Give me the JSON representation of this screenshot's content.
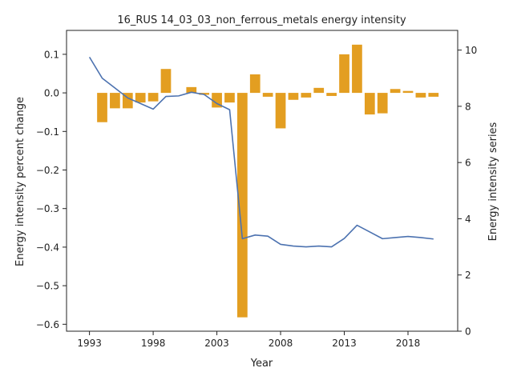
{
  "chart_data": {
    "type": "bar+line",
    "title": "16_RUS 14_03_03_non_ferrous_metals energy intensity",
    "xlabel": "Year",
    "ylabel_left": "Energy intensity percent change",
    "ylabel_right": "Energy intensity series",
    "grid": false,
    "colors": {
      "bars": "#E39E21",
      "line": "#4C72B0",
      "axes": "#222222"
    },
    "x_ticks": [
      1993,
      1998,
      2003,
      2008,
      2013,
      2018
    ],
    "x_tick_labels": [
      "1993",
      "1998",
      "2003",
      "2008",
      "2013",
      "2018"
    ],
    "y_left_ticks": [
      0.1,
      0.0,
      -0.1,
      -0.2,
      -0.3,
      -0.4,
      -0.5,
      -0.6
    ],
    "y_left_tick_labels": [
      "0.1",
      "0.0",
      "−0.1",
      "−0.2",
      "−0.3",
      "−0.4",
      "−0.5",
      "−0.6"
    ],
    "y_right_ticks": [
      0,
      2,
      4,
      6,
      8,
      10
    ],
    "y_right_tick_labels": [
      "0",
      "2",
      "4",
      "6",
      "8",
      "10"
    ],
    "xlim": [
      1991.2,
      2021.9
    ],
    "ylim_left": [
      -0.618,
      0.162
    ],
    "ylim_right": [
      0,
      10.7
    ],
    "bars": {
      "x": [
        1994,
        1995,
        1996,
        1997,
        1998,
        1999,
        2000,
        2001,
        2002,
        2003,
        2004,
        2005,
        2006,
        2007,
        2008,
        2009,
        2010,
        2011,
        2012,
        2013,
        2014,
        2015,
        2016,
        2017,
        2018,
        2019,
        2020
      ],
      "values": [
        -0.076,
        -0.04,
        -0.04,
        -0.025,
        -0.022,
        0.062,
        0.0,
        0.015,
        -0.005,
        -0.038,
        -0.025,
        -0.582,
        0.048,
        -0.01,
        -0.092,
        -0.018,
        -0.012,
        0.013,
        -0.008,
        0.1,
        0.125,
        -0.056,
        -0.053,
        0.01,
        0.005,
        -0.012,
        -0.01
      ]
    },
    "line": {
      "x": [
        1993,
        1994,
        1995,
        1996,
        1997,
        1998,
        1999,
        2000,
        2001,
        2002,
        2003,
        2004,
        2005,
        2006,
        2007,
        2008,
        2009,
        2010,
        2011,
        2012,
        2013,
        2014,
        2015,
        2016,
        2017,
        2018,
        2019,
        2020
      ],
      "values": [
        9.75,
        9.0,
        8.65,
        8.3,
        8.1,
        7.9,
        8.35,
        8.37,
        8.5,
        8.42,
        8.1,
        7.88,
        3.29,
        3.42,
        3.38,
        3.09,
        3.03,
        3.0,
        3.03,
        3.0,
        3.3,
        3.77,
        3.53,
        3.29,
        3.33,
        3.37,
        3.33,
        3.28
      ]
    }
  }
}
